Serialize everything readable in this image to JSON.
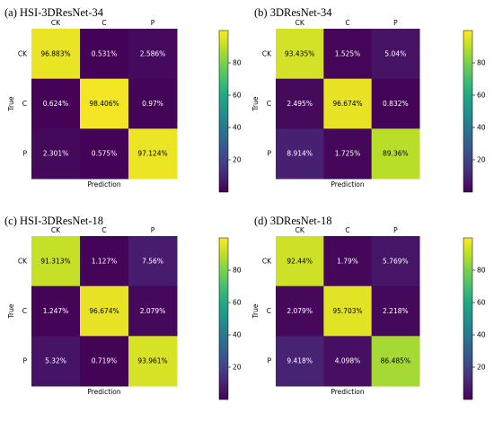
{
  "chart_data": [
    {
      "type": "heatmap",
      "title": "(a) HSI-3DResNet-34",
      "xlabel": "Prediction",
      "ylabel": "True",
      "x_categories": [
        "CK",
        "C",
        "P"
      ],
      "y_categories": [
        "CK",
        "C",
        "P"
      ],
      "values": [
        [
          96.883,
          0.531,
          2.586
        ],
        [
          0.624,
          98.406,
          0.97
        ],
        [
          2.301,
          0.575,
          97.124
        ]
      ],
      "labels": [
        [
          "96.883%",
          "0.531%",
          "2.586%"
        ],
        [
          "0.624%",
          "98.406%",
          "0.97%"
        ],
        [
          "2.301%",
          "0.575%",
          "97.124%"
        ]
      ],
      "colorbar_ticks": [
        "20",
        "40",
        "60",
        "80"
      ],
      "colorbar_range": [
        0,
        100
      ],
      "colormap": "viridis"
    },
    {
      "type": "heatmap",
      "title": "(b) 3DResNet-34",
      "xlabel": "Prediction",
      "ylabel": "True",
      "x_categories": [
        "CK",
        "C",
        "P"
      ],
      "y_categories": [
        "CK",
        "C",
        "P"
      ],
      "values": [
        [
          93.435,
          1.525,
          5.04
        ],
        [
          2.495,
          96.674,
          0.832
        ],
        [
          8.914,
          1.725,
          89.36
        ]
      ],
      "labels": [
        [
          "93.435%",
          "1.525%",
          "5.04%"
        ],
        [
          "2.495%",
          "96.674%",
          "0.832%"
        ],
        [
          "8.914%",
          "1.725%",
          "89.36%"
        ]
      ],
      "colorbar_ticks": [
        "20",
        "40",
        "60",
        "80"
      ],
      "colorbar_range": [
        0,
        100
      ],
      "colormap": "viridis"
    },
    {
      "type": "heatmap",
      "title": "(c) HSI-3DResNet-18",
      "xlabel": "Prediction",
      "ylabel": "True",
      "x_categories": [
        "CK",
        "C",
        "P"
      ],
      "y_categories": [
        "CK",
        "C",
        "P"
      ],
      "values": [
        [
          91.313,
          1.127,
          7.56
        ],
        [
          1.247,
          96.674,
          2.079
        ],
        [
          5.32,
          0.719,
          93.961
        ]
      ],
      "labels": [
        [
          "91.313%",
          "1.127%",
          "7.56%"
        ],
        [
          "1.247%",
          "96.674%",
          "2.079%"
        ],
        [
          "5.32%",
          "0.719%",
          "93.961%"
        ]
      ],
      "colorbar_ticks": [
        "20",
        "40",
        "60",
        "80"
      ],
      "colorbar_range": [
        0,
        100
      ],
      "colormap": "viridis"
    },
    {
      "type": "heatmap",
      "title": "(d) 3DResNet-18",
      "xlabel": "Prediction",
      "ylabel": "True",
      "x_categories": [
        "CK",
        "C",
        "P"
      ],
      "y_categories": [
        "CK",
        "C",
        "P"
      ],
      "values": [
        [
          92.44,
          1.79,
          5.769
        ],
        [
          2.079,
          95.703,
          2.218
        ],
        [
          9.418,
          4.098,
          86.485
        ]
      ],
      "labels": [
        [
          "92.44%",
          "1.79%",
          "5.769%"
        ],
        [
          "2.079%",
          "95.703%",
          "2.218%"
        ],
        [
          "9.418%",
          "4.098%",
          "86.485%"
        ]
      ],
      "colorbar_ticks": [
        "20",
        "40",
        "60",
        "80"
      ],
      "colorbar_range": [
        0,
        100
      ],
      "colormap": "viridis"
    }
  ]
}
